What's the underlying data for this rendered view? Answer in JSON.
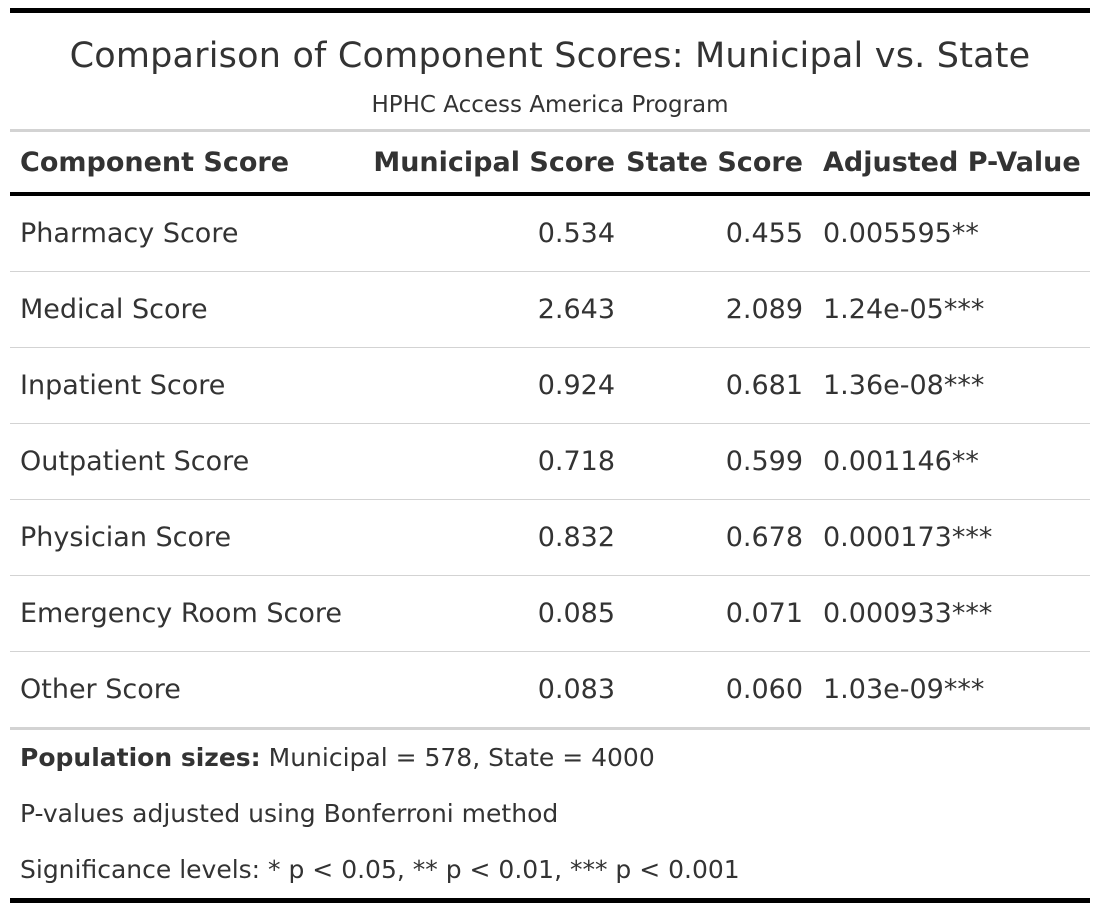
{
  "table": {
    "title": "Comparison of Component Scores: Municipal vs. State",
    "subtitle": "HPHC Access America Program",
    "columns": [
      "Component Score",
      "Municipal Score",
      "State Score",
      "Adjusted P-Value"
    ],
    "rows": [
      {
        "component": "Pharmacy Score",
        "municipal": "0.534",
        "state": "0.455",
        "p_value": "0.005595**"
      },
      {
        "component": "Medical Score",
        "municipal": "2.643",
        "state": "2.089",
        "p_value": "1.24e-05***"
      },
      {
        "component": "Inpatient Score",
        "municipal": "0.924",
        "state": "0.681",
        "p_value": "1.36e-08***"
      },
      {
        "component": "Outpatient Score",
        "municipal": "0.718",
        "state": "0.599",
        "p_value": "0.001146**"
      },
      {
        "component": "Physician Score",
        "municipal": "0.832",
        "state": "0.678",
        "p_value": "0.000173***"
      },
      {
        "component": "Emergency Room Score",
        "municipal": "0.085",
        "state": "0.071",
        "p_value": "0.000933***"
      },
      {
        "component": "Other Score",
        "municipal": "0.083",
        "state": "0.060",
        "p_value": "1.03e-09***"
      }
    ],
    "footnotes": {
      "population_label": "Population sizes:",
      "population_text": " Municipal = 578, State = 4000",
      "adjustment": "P-values adjusted using Bonferroni method",
      "significance": "Significance levels: * p < 0.05, ** p < 0.01, *** p < 0.001"
    }
  },
  "colors": {
    "text": "#333333",
    "rule_dark": "#000000",
    "rule_light": "#d3d3d3"
  }
}
